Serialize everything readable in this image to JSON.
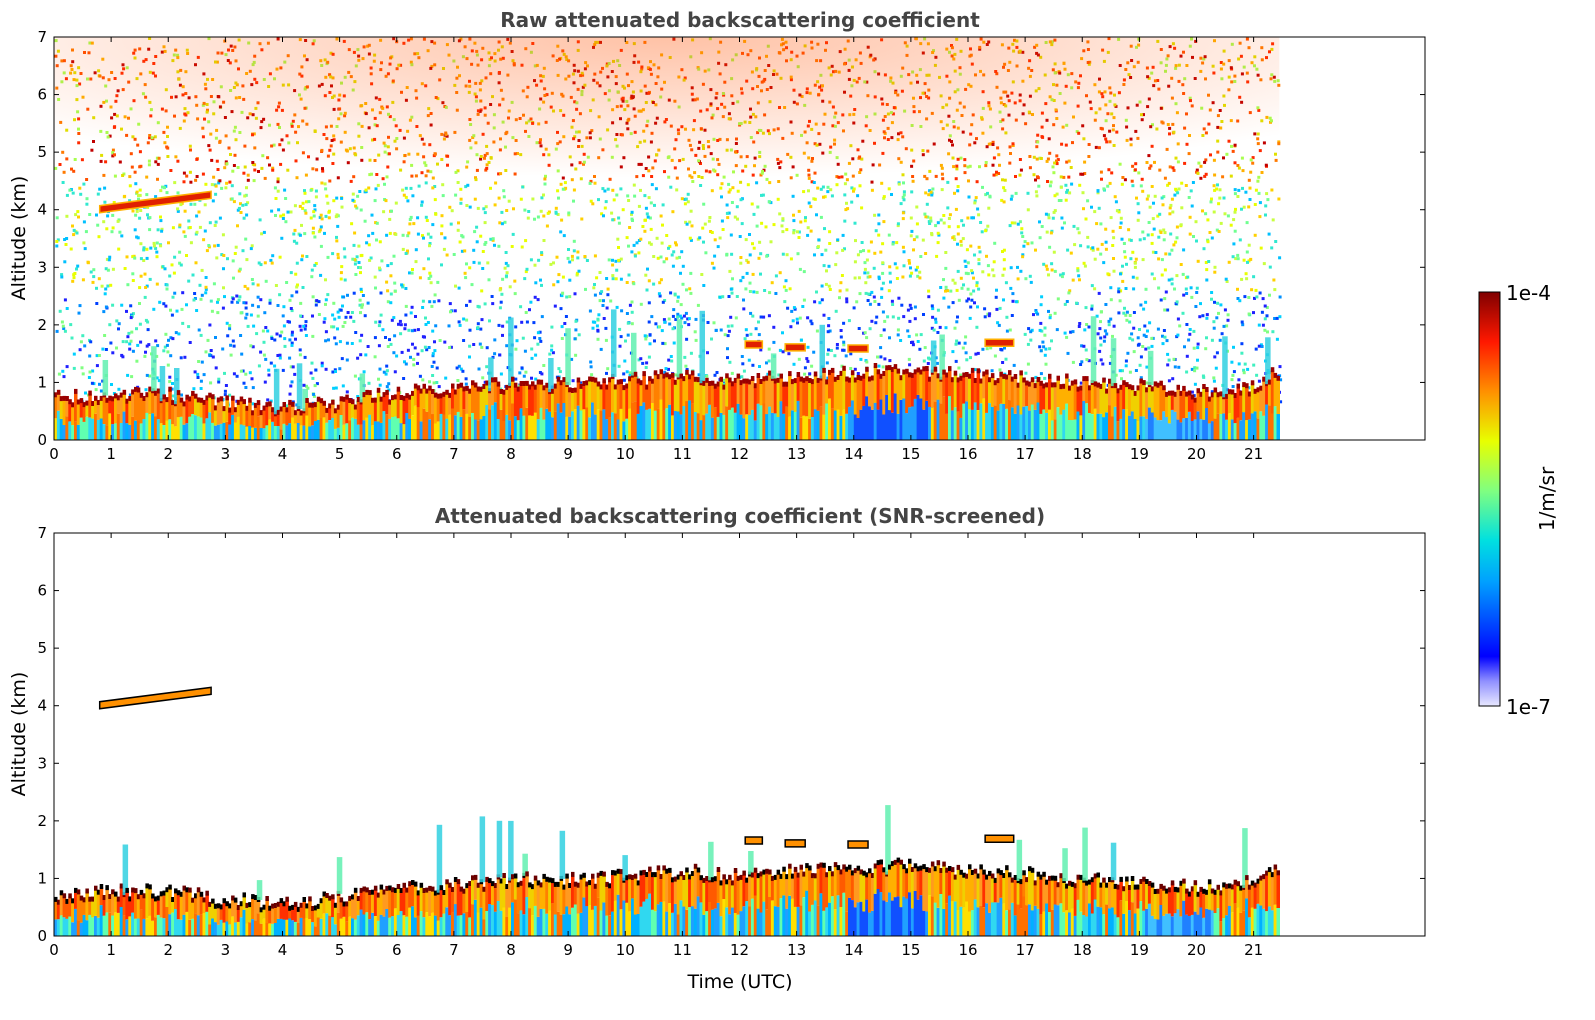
{
  "chart_data": [
    {
      "type": "heatmap",
      "title": "Raw attenuated backscattering coefficient",
      "xlabel": "",
      "ylabel": "Altitude (km)",
      "xlim": [
        0,
        24
      ],
      "ylim": [
        0,
        7
      ],
      "x_ticks": [
        0,
        1,
        2,
        3,
        4,
        5,
        6,
        7,
        8,
        9,
        10,
        11,
        12,
        13,
        14,
        15,
        16,
        17,
        18,
        19,
        20,
        21
      ],
      "y_ticks": [
        0,
        1,
        2,
        3,
        4,
        5,
        6,
        7
      ],
      "data_extent_hours": 21.45,
      "boundary_layer_top_km": [
        [
          0,
          0.7
        ],
        [
          1,
          0.75
        ],
        [
          2,
          0.75
        ],
        [
          3,
          0.6
        ],
        [
          4,
          0.55
        ],
        [
          5,
          0.62
        ],
        [
          6,
          0.8
        ],
        [
          7,
          0.85
        ],
        [
          8,
          0.95
        ],
        [
          9,
          0.95
        ],
        [
          10,
          1.0
        ],
        [
          11,
          1.1
        ],
        [
          12,
          1.0
        ],
        [
          13,
          1.1
        ],
        [
          14,
          1.15
        ],
        [
          15,
          1.2
        ],
        [
          16,
          1.1
        ],
        [
          17,
          1.05
        ],
        [
          18,
          0.95
        ],
        [
          19,
          0.9
        ],
        [
          20,
          0.8
        ],
        [
          21,
          0.9
        ],
        [
          21.45,
          1.2
        ]
      ],
      "cloud_layers": [
        {
          "x_start": 0.8,
          "x_end": 2.75,
          "altitude_km": [
            4.0,
            4.25
          ]
        },
        {
          "x_start": 12.1,
          "x_end": 12.4,
          "altitude_km": [
            1.65,
            1.65
          ]
        },
        {
          "x_start": 12.8,
          "x_end": 13.15,
          "altitude_km": [
            1.6,
            1.6
          ]
        },
        {
          "x_start": 13.9,
          "x_end": 14.25,
          "altitude_km": [
            1.58,
            1.58
          ]
        },
        {
          "x_start": 16.3,
          "x_end": 16.8,
          "altitude_km": [
            1.68,
            1.68
          ]
        }
      ],
      "colorscale": "jet",
      "clim": [
        "1e-7",
        "1e-4"
      ],
      "grid": false
    },
    {
      "type": "heatmap",
      "title": "Attenuated backscattering coefficient (SNR-screened)",
      "xlabel": "Time (UTC)",
      "ylabel": "Altitude (km)",
      "xlim": [
        0,
        24
      ],
      "ylim": [
        0,
        7
      ],
      "x_ticks": [
        0,
        1,
        2,
        3,
        4,
        5,
        6,
        7,
        8,
        9,
        10,
        11,
        12,
        13,
        14,
        15,
        16,
        17,
        18,
        19,
        20,
        21
      ],
      "y_ticks": [
        0,
        1,
        2,
        3,
        4,
        5,
        6,
        7
      ],
      "data_extent_hours": 21.45,
      "colorscale": "jet",
      "clim": [
        "1e-7",
        "1e-4"
      ],
      "grid": false
    }
  ],
  "colorbar": {
    "max_label": "1e-4",
    "min_label": "1e-7",
    "unit_label": "1/m/sr"
  }
}
